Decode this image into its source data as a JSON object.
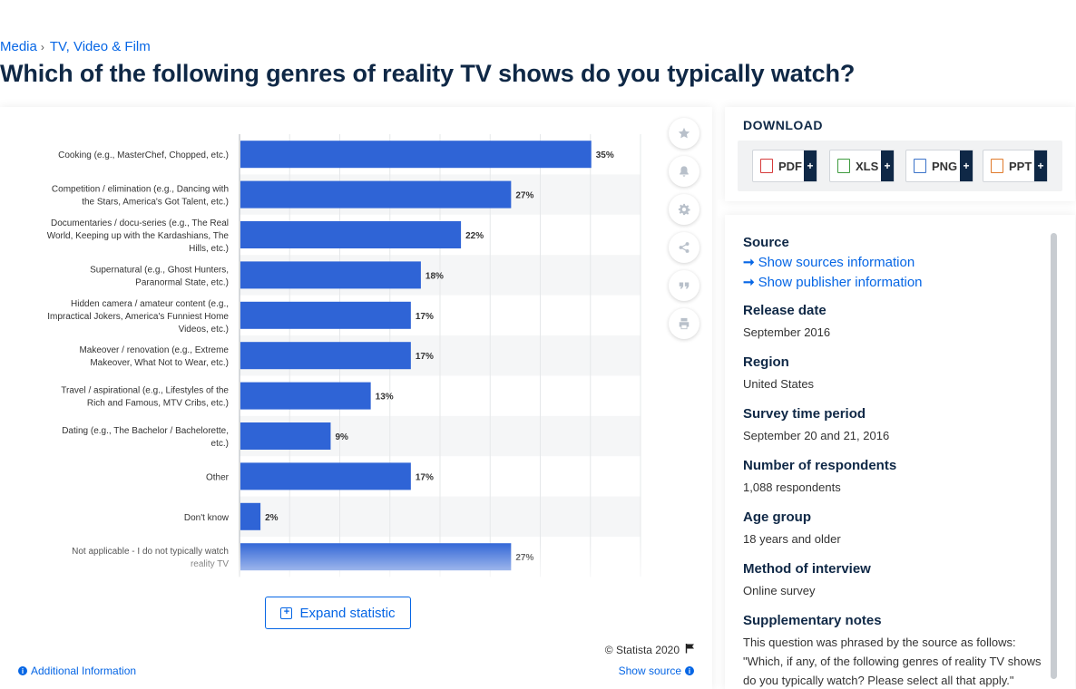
{
  "breadcrumb": {
    "items": [
      "Media",
      "TV, Video & Film"
    ]
  },
  "title": "Which of the following genres of reality TV shows do you typically watch?",
  "chart_data": {
    "type": "bar",
    "orientation": "horizontal",
    "categories": [
      "Cooking (e.g., MasterChef, Chopped, etc.)",
      "Competition / elimination (e.g., Dancing with the Stars, America's Got Talent, etc.)",
      "Documentaries / docu-series (e.g., The Real World, Keeping up with the Kardashians, The Hills, etc.)",
      "Supernatural (e.g., Ghost Hunters, Paranormal State, etc.)",
      "Hidden camera / amateur content (e.g., Impractical Jokers, America's Funniest Home Videos, etc.)",
      "Makeover / renovation (e.g., Extreme Makeover, What Not to Wear, etc.)",
      "Travel / aspirational (e.g., Lifestyles of the Rich and Famous, MTV Cribs, etc.)",
      "Dating (e.g., The Bachelor / Bachelorette, etc.)",
      "Other",
      "Don't know",
      "Not applicable - I do not typically watch reality TV"
    ],
    "category_lines": [
      [
        "Cooking (e.g., MasterChef, Chopped, etc.)"
      ],
      [
        "Competition / elimination (e.g., Dancing with",
        "the Stars, America's Got Talent, etc.)"
      ],
      [
        "Documentaries / docu-series (e.g., The Real",
        "World, Keeping up with the Kardashians, The",
        "Hills, etc.)"
      ],
      [
        "Supernatural (e.g., Ghost Hunters,",
        "Paranormal State, etc.)"
      ],
      [
        "Hidden camera / amateur content (e.g.,",
        "Impractical Jokers, America's Funniest Home",
        "Videos, etc.)"
      ],
      [
        "Makeover / renovation (e.g., Extreme",
        "Makeover, What Not to Wear, etc.)"
      ],
      [
        "Travel / aspirational (e.g., Lifestyles of the",
        "Rich and Famous, MTV Cribs, etc.)"
      ],
      [
        "Dating (e.g., The Bachelor / Bachelorette,",
        "etc.)"
      ],
      [
        "Other"
      ],
      [
        "Don't know"
      ],
      [
        "Not applicable - I do not typically watch",
        "reality TV"
      ]
    ],
    "values": [
      35,
      27,
      22,
      18,
      17,
      17,
      13,
      9,
      17,
      2,
      27
    ],
    "value_labels": [
      "35%",
      "27%",
      "22%",
      "18%",
      "17%",
      "17%",
      "13%",
      "9%",
      "17%",
      "2%",
      "27%"
    ],
    "xlim": [
      0,
      40
    ],
    "grid": true,
    "bar_color": "#2f64d6"
  },
  "tools": [
    "star-icon",
    "bell-icon",
    "gear-icon",
    "share-icon",
    "quote-icon",
    "print-icon"
  ],
  "expand_label": "Expand statistic",
  "copyright": "© Statista 2020",
  "show_source": "Show source",
  "additional_info": "Additional Information",
  "download": {
    "title": "DOWNLOAD",
    "buttons": [
      {
        "label": "PDF",
        "color": "#d63b3b"
      },
      {
        "label": "XLS",
        "color": "#3f9b3f"
      },
      {
        "label": "PNG",
        "color": "#3b73c9"
      },
      {
        "label": "PPT",
        "color": "#e07a2b"
      }
    ],
    "plus": "+"
  },
  "details": {
    "source_label": "Source",
    "source_link": "Show sources information",
    "publisher_link": "Show publisher information",
    "release_label": "Release date",
    "release_value": "September 2016",
    "region_label": "Region",
    "region_value": "United States",
    "survey_label": "Survey time period",
    "survey_value": "September 20 and 21, 2016",
    "respondents_label": "Number of respondents",
    "respondents_value": "1,088 respondents",
    "age_label": "Age group",
    "age_value": "18 years and older",
    "method_label": "Method of interview",
    "method_value": "Online survey",
    "notes_label": "Supplementary notes",
    "notes_value": "This question was phrased by the source as follows: \"Which, if any, of the following genres of reality TV shows do you typically watch? Please select all that apply.\""
  }
}
